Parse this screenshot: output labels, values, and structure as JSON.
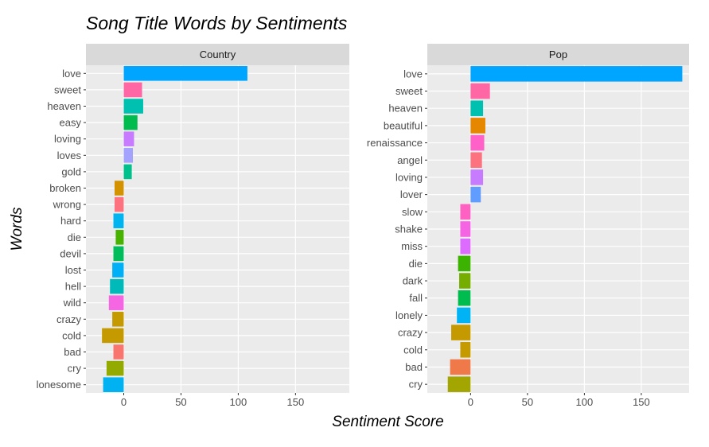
{
  "title": "Song Title Words by Sentiments",
  "xlabel": "Sentiment Score",
  "ylabel": "Words",
  "chart_data": [
    {
      "type": "bar",
      "orientation": "horizontal",
      "panel": "Country",
      "xlim": [
        -33,
        197
      ],
      "xticks": [
        0,
        50,
        100,
        150
      ],
      "categories": [
        "love",
        "sweet",
        "heaven",
        "easy",
        "loving",
        "loves",
        "gold",
        "broken",
        "wrong",
        "hard",
        "die",
        "devil",
        "lost",
        "hell",
        "wild",
        "crazy",
        "cold",
        "bad",
        "cry",
        "lonesome"
      ],
      "values": [
        108,
        16,
        17,
        12,
        9,
        8,
        7,
        -8,
        -8,
        -9,
        -7,
        -9,
        -10,
        -12,
        -13,
        -10,
        -19,
        -9,
        -15,
        -18
      ],
      "colors": [
        "#00a5ff",
        "#ff67a4",
        "#00c0b0",
        "#00bb4e",
        "#c77cff",
        "#a3a2ff",
        "#00c08b",
        "#d39200",
        "#fc727f",
        "#00b4ef",
        "#47b300",
        "#00bc5a",
        "#00b0f6",
        "#00baba",
        "#f566e3",
        "#c59a00",
        "#c49a00",
        "#f8766d",
        "#93aa00",
        "#00b2f2"
      ]
    },
    {
      "type": "bar",
      "orientation": "horizontal",
      "panel": "Pop",
      "xlim": [
        -38,
        192
      ],
      "xticks": [
        0,
        50,
        100,
        150
      ],
      "categories": [
        "love",
        "sweet",
        "heaven",
        "beautiful",
        "renaissance",
        "angel",
        "loving",
        "lover",
        "slow",
        "shake",
        "miss",
        "die",
        "dark",
        "fall",
        "lonely",
        "crazy",
        "cold",
        "bad",
        "cry"
      ],
      "values": [
        186,
        17,
        11,
        13,
        12,
        10,
        11,
        9,
        -9,
        -9,
        -9,
        -11,
        -10,
        -11,
        -12,
        -17,
        -9,
        -18,
        -20
      ],
      "colors": [
        "#00a5ff",
        "#ff67a4",
        "#00c0b0",
        "#e58700",
        "#ff61c9",
        "#fc727f",
        "#c77cff",
        "#619cff",
        "#ff61c3",
        "#f564e3",
        "#de6bff",
        "#3cb300",
        "#75ad00",
        "#00bb4e",
        "#00b3f4",
        "#c59a00",
        "#c49a00",
        "#f0794a",
        "#a3a500"
      ]
    }
  ]
}
